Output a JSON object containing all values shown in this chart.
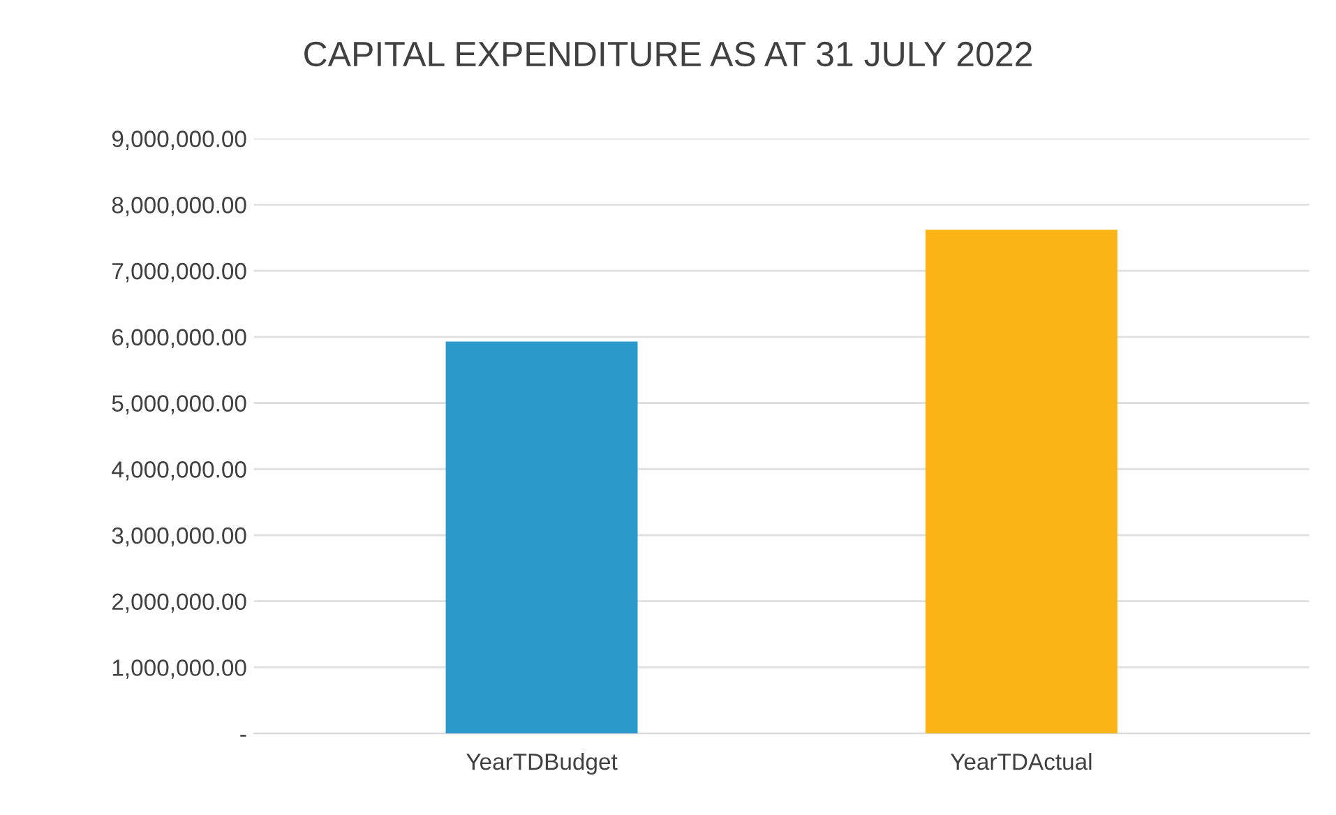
{
  "chart_data": {
    "type": "bar",
    "title": "CAPITAL EXPENDITURE AS AT 31 JULY 2022",
    "categories": [
      "YearTDBudget",
      "YearTDActual"
    ],
    "values": [
      5930000,
      7620000
    ],
    "colors": [
      "#2b9acb",
      "#fbb416"
    ],
    "ylim": [
      0,
      9000000
    ],
    "yticks": [
      {
        "value": 0,
        "label": "-"
      },
      {
        "value": 1000000,
        "label": "1,000,000.00"
      },
      {
        "value": 2000000,
        "label": "2,000,000.00"
      },
      {
        "value": 3000000,
        "label": "3,000,000.00"
      },
      {
        "value": 4000000,
        "label": "4,000,000.00"
      },
      {
        "value": 5000000,
        "label": "5,000,000.00"
      },
      {
        "value": 6000000,
        "label": "6,000,000.00"
      },
      {
        "value": 7000000,
        "label": "7,000,000.00"
      },
      {
        "value": 8000000,
        "label": "8,000,000.00"
      },
      {
        "value": 9000000,
        "label": "9,000,000.00"
      }
    ],
    "grid": "y"
  }
}
